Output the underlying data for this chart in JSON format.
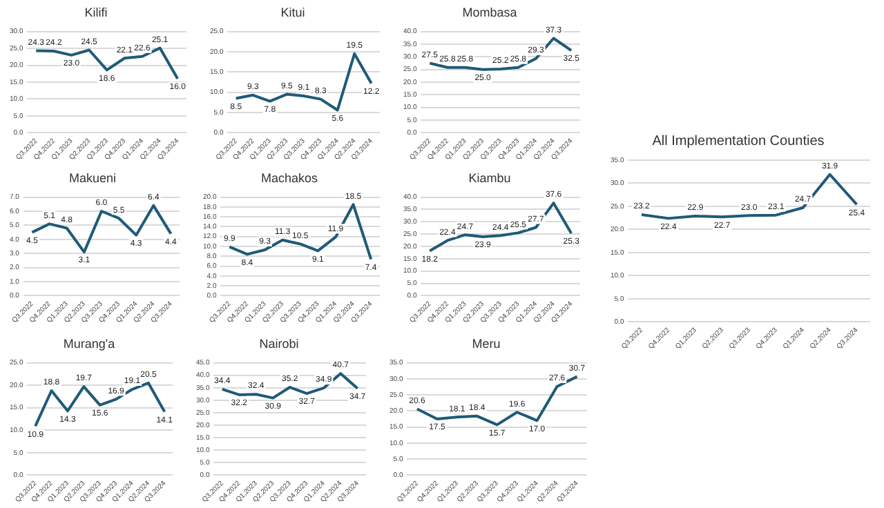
{
  "chart_data": [
    {
      "type": "line",
      "title": "Kilifi",
      "categories": [
        "Q3,2022",
        "Q4,2022",
        "Q1,2023",
        "Q2,2023",
        "Q3,2023",
        "Q4,2023",
        "Q1,2024",
        "Q2,2024",
        "Q3,2024"
      ],
      "values": [
        24.3,
        24.2,
        23.0,
        24.5,
        18.6,
        22.1,
        22.6,
        25.1,
        16.0
      ],
      "value_labels": [
        "24.3",
        "24.2",
        "23.0",
        "24.5",
        "18.6",
        "22.1",
        "22.6",
        "25.1",
        "16.0"
      ],
      "color": "#1f5a78",
      "ylim": [
        0,
        30
      ],
      "yticks": [
        {
          "value": 0,
          "label": "0.0"
        },
        {
          "value": 5,
          "label": "5.0"
        },
        {
          "value": 10,
          "label": "10.0"
        },
        {
          "value": 15,
          "label": "15.0"
        },
        {
          "value": 20,
          "label": "20.0"
        },
        {
          "value": 25,
          "label": "25.0"
        },
        {
          "value": 30,
          "label": "30.0"
        }
      ],
      "grid": "y"
    },
    {
      "type": "line",
      "title": "Kitui",
      "categories": [
        "Q3,2022",
        "Q4,2022",
        "Q1,2023",
        "Q2,2023",
        "Q3,2023",
        "Q4,2023",
        "Q1,2024",
        "Q2,2024",
        "Q3,2024"
      ],
      "values": [
        8.5,
        9.3,
        7.8,
        9.5,
        9.1,
        8.3,
        5.6,
        19.5,
        12.2
      ],
      "value_labels": [
        "8.5",
        "9.3",
        "7.8",
        "9.5",
        "9.1",
        "8.3",
        "5.6",
        "19.5",
        "12.2"
      ],
      "color": "#1f5a78",
      "ylim": [
        0,
        25
      ],
      "yticks": [
        {
          "value": 0,
          "label": "0.0"
        },
        {
          "value": 5,
          "label": "5.0"
        },
        {
          "value": 10,
          "label": "10.0"
        },
        {
          "value": 15,
          "label": "15.0"
        },
        {
          "value": 20,
          "label": "20.0"
        },
        {
          "value": 25,
          "label": "25.0"
        }
      ],
      "grid": "y"
    },
    {
      "type": "line",
      "title": "Mombasa",
      "categories": [
        "Q3,2022",
        "Q4,2022",
        "Q1,2023",
        "Q2,2023",
        "Q3,2023",
        "Q4,2023",
        "Q1,2024",
        "Q2,2024",
        "Q3,2024"
      ],
      "values": [
        27.5,
        25.8,
        25.8,
        25.0,
        25.2,
        25.8,
        29.3,
        37.3,
        32.5
      ],
      "value_labels": [
        "27.5",
        "25.8",
        "25.8",
        "25.0",
        "25.2",
        "25.8",
        "29.3",
        "37.3",
        "32.5"
      ],
      "color": "#1f5a78",
      "ylim": [
        0,
        40
      ],
      "yticks": [
        {
          "value": 0,
          "label": "0.0"
        },
        {
          "value": 5,
          "label": "5.0"
        },
        {
          "value": 10,
          "label": "10.0"
        },
        {
          "value": 15,
          "label": "15.0"
        },
        {
          "value": 20,
          "label": "20.0"
        },
        {
          "value": 25,
          "label": "25.0"
        },
        {
          "value": 30,
          "label": "30.0"
        },
        {
          "value": 35,
          "label": "35.0"
        },
        {
          "value": 40,
          "label": "40.0"
        }
      ],
      "grid": "y"
    },
    {
      "type": "line",
      "title": "Makueni",
      "categories": [
        "Q3,2022",
        "Q4,2022",
        "Q1,2023",
        "Q2,2023",
        "Q3,2023",
        "Q4,2023",
        "Q1,2024",
        "Q2,2024",
        "Q3,2024"
      ],
      "values": [
        4.5,
        5.1,
        4.8,
        3.1,
        6.0,
        5.5,
        4.3,
        6.4,
        4.4
      ],
      "value_labels": [
        "4.5",
        "5.1",
        "4.8",
        "3.1",
        "6.0",
        "5.5",
        "4.3",
        "6.4",
        "4.4"
      ],
      "color": "#1f5a78",
      "ylim": [
        0,
        7
      ],
      "yticks": [
        {
          "value": 0,
          "label": "0.0"
        },
        {
          "value": 1,
          "label": "1.0"
        },
        {
          "value": 2,
          "label": "2.0"
        },
        {
          "value": 3,
          "label": "3.0"
        },
        {
          "value": 4,
          "label": "4.0"
        },
        {
          "value": 5,
          "label": "5.0"
        },
        {
          "value": 6,
          "label": "6.0"
        },
        {
          "value": 7,
          "label": "7.0"
        }
      ],
      "grid": "y"
    },
    {
      "type": "line",
      "title": "Machakos",
      "categories": [
        "Q3,2022",
        "Q4,2022",
        "Q1,2023",
        "Q2,2023",
        "Q3,2023",
        "Q4,2023",
        "Q1,2024",
        "Q2,2024",
        "Q3,2024"
      ],
      "values": [
        9.9,
        8.4,
        9.3,
        11.3,
        10.5,
        9.1,
        11.9,
        18.5,
        7.4
      ],
      "value_labels": [
        "9.9",
        "8.4",
        "9.3",
        "11.3",
        "10.5",
        "9.1",
        "11.9",
        "18.5",
        "7.4"
      ],
      "color": "#1f5a78",
      "ylim": [
        0,
        20
      ],
      "yticks": [
        {
          "value": 0,
          "label": "0.0"
        },
        {
          "value": 2,
          "label": "2.0"
        },
        {
          "value": 4,
          "label": "4.0"
        },
        {
          "value": 6,
          "label": "6.0"
        },
        {
          "value": 8,
          "label": "8.0"
        },
        {
          "value": 10,
          "label": "10.0"
        },
        {
          "value": 12,
          "label": "12.0"
        },
        {
          "value": 14,
          "label": "14.0"
        },
        {
          "value": 16,
          "label": "16.0"
        },
        {
          "value": 18,
          "label": "18.0"
        },
        {
          "value": 20,
          "label": "20.0"
        }
      ],
      "grid": "y"
    },
    {
      "type": "line",
      "title": "Kiambu",
      "categories": [
        "Q3,2022",
        "Q4,2022",
        "Q1,2023",
        "Q2,2023",
        "Q3,2023",
        "Q4,2023",
        "Q1,2024",
        "Q2,2024",
        "Q3,2024"
      ],
      "values": [
        18.2,
        22.4,
        24.7,
        23.9,
        24.4,
        25.5,
        27.7,
        37.6,
        25.3
      ],
      "value_labels": [
        "18.2",
        "22.4",
        "24.7",
        "23.9",
        "24.4",
        "25.5",
        "27.7",
        "37.6",
        "25.3"
      ],
      "color": "#1f5a78",
      "ylim": [
        0,
        40
      ],
      "yticks": [
        {
          "value": 0,
          "label": "0.0"
        },
        {
          "value": 5,
          "label": "5.0"
        },
        {
          "value": 10,
          "label": "10.0"
        },
        {
          "value": 15,
          "label": "15.0"
        },
        {
          "value": 20,
          "label": "20.0"
        },
        {
          "value": 25,
          "label": "25.0"
        },
        {
          "value": 30,
          "label": "30.0"
        },
        {
          "value": 35,
          "label": "35.0"
        },
        {
          "value": 40,
          "label": "40.0"
        }
      ],
      "grid": "y"
    },
    {
      "type": "line",
      "title": "All Implementation Counties",
      "categories": [
        "Q3,2022",
        "Q4,2022",
        "Q1,2023",
        "Q2,2023",
        "Q3,2023",
        "Q4,2023",
        "Q1,2024",
        "Q2,2024",
        "Q3,2024"
      ],
      "values": [
        23.2,
        22.4,
        22.9,
        22.7,
        23.0,
        23.1,
        24.7,
        31.9,
        25.4
      ],
      "value_labels": [
        "23.2",
        "22.4",
        "22.9",
        "22.7",
        "23.0",
        "23.1",
        "24.7",
        "31.9",
        "25.4"
      ],
      "color": "#1f5a78",
      "ylim": [
        0,
        35
      ],
      "yticks": [
        {
          "value": 0,
          "label": "0.0"
        },
        {
          "value": 5,
          "label": "5.0"
        },
        {
          "value": 10,
          "label": "10.0"
        },
        {
          "value": 15,
          "label": "15.0"
        },
        {
          "value": 20,
          "label": "20.0"
        },
        {
          "value": 25,
          "label": "25.0"
        },
        {
          "value": 30,
          "label": "30.0"
        },
        {
          "value": 35,
          "label": "35.0"
        }
      ],
      "grid": "y"
    },
    {
      "type": "line",
      "title": "Murang'a",
      "categories": [
        "Q3,2022",
        "Q4,2022",
        "Q1,2023",
        "Q2,2023",
        "Q3,2023",
        "Q4,2023",
        "Q1,2024",
        "Q2,2024",
        "Q3,2024"
      ],
      "values": [
        10.9,
        18.8,
        14.3,
        19.7,
        15.6,
        16.9,
        19.1,
        20.5,
        14.1
      ],
      "value_labels": [
        "10.9",
        "18.8",
        "14.3",
        "19.7",
        "15.6",
        "16.9",
        "19.1",
        "20.5",
        "14.1"
      ],
      "color": "#1f5a78",
      "ylim": [
        0,
        25
      ],
      "yticks": [
        {
          "value": 0,
          "label": "0.0"
        },
        {
          "value": 5,
          "label": "5.0"
        },
        {
          "value": 10,
          "label": "10.0"
        },
        {
          "value": 15,
          "label": "15.0"
        },
        {
          "value": 20,
          "label": "20.0"
        },
        {
          "value": 25,
          "label": "25.0"
        }
      ],
      "grid": "y"
    },
    {
      "type": "line",
      "title": "Nairobi",
      "categories": [
        "Q3,2022",
        "Q4,2022",
        "Q1,2023",
        "Q2,2023",
        "Q3,2023",
        "Q4,2023",
        "Q1,2024",
        "Q2,2024",
        "Q3,2024"
      ],
      "values": [
        34.4,
        32.2,
        32.4,
        30.9,
        35.2,
        32.7,
        34.9,
        40.7,
        34.7
      ],
      "value_labels": [
        "34.4",
        "32.2",
        "32.4",
        "30.9",
        "35.2",
        "32.7",
        "34.9",
        "40.7",
        "34.7"
      ],
      "color": "#1f5a78",
      "ylim": [
        0,
        45
      ],
      "yticks": [
        {
          "value": 0,
          "label": "0.0"
        },
        {
          "value": 5,
          "label": "5.0"
        },
        {
          "value": 10,
          "label": "10.0"
        },
        {
          "value": 15,
          "label": "15.0"
        },
        {
          "value": 20,
          "label": "20.0"
        },
        {
          "value": 25,
          "label": "25.0"
        },
        {
          "value": 30,
          "label": "30.0"
        },
        {
          "value": 35,
          "label": "35.0"
        },
        {
          "value": 40,
          "label": "40.0"
        },
        {
          "value": 45,
          "label": "45.0"
        }
      ],
      "grid": "y"
    },
    {
      "type": "line",
      "title": "Meru",
      "categories": [
        "Q3,2022",
        "Q4,2022",
        "Q1,2023",
        "Q2,2023",
        "Q3,2023",
        "Q4,2023",
        "Q1,2024",
        "Q2,2024",
        "Q3,2024"
      ],
      "values": [
        20.6,
        17.5,
        18.1,
        18.4,
        15.7,
        19.6,
        17.0,
        27.6,
        30.7
      ],
      "value_labels": [
        "20.6",
        "17.5",
        "18.1",
        "18.4",
        "15.7",
        "19.6",
        "17.0",
        "27.6",
        "30.7"
      ],
      "color": "#1f5a78",
      "ylim": [
        0,
        35
      ],
      "yticks": [
        {
          "value": 0,
          "label": "0.0"
        },
        {
          "value": 5,
          "label": "5.0"
        },
        {
          "value": 10,
          "label": "10.0"
        },
        {
          "value": 15,
          "label": "15.0"
        },
        {
          "value": 20,
          "label": "20.0"
        },
        {
          "value": 25,
          "label": "25.0"
        },
        {
          "value": 30,
          "label": "30.0"
        },
        {
          "value": 35,
          "label": "35.0"
        }
      ],
      "grid": "y"
    }
  ]
}
